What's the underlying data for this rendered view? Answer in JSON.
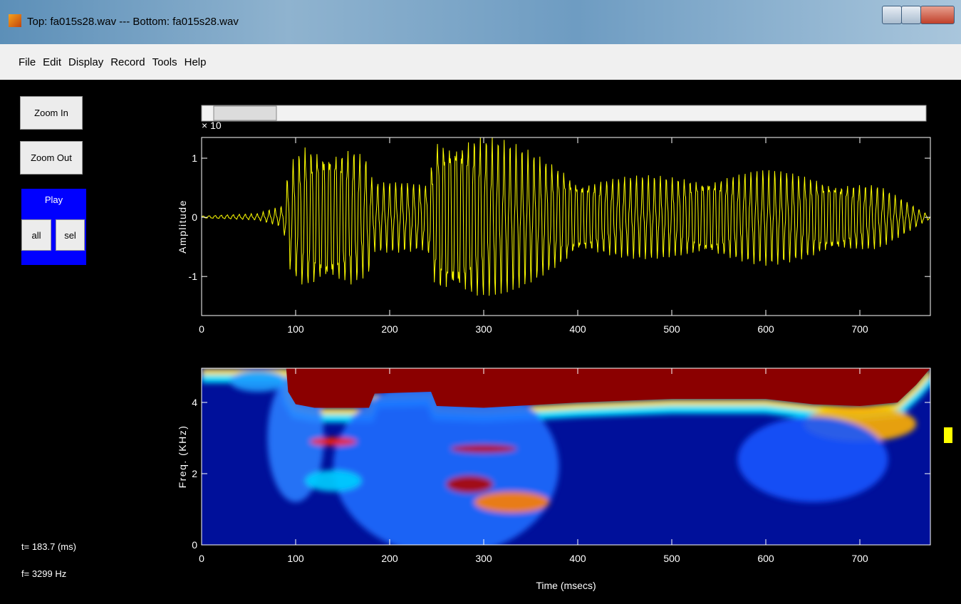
{
  "window": {
    "title": "Top: fa015s28.wav --- Bottom: fa015s28.wav"
  },
  "menu": [
    "File",
    "Edit",
    "Display",
    "Record",
    "Tools",
    "Help"
  ],
  "buttons": {
    "zoom_in": "Zoom In",
    "zoom_out": "Zoom Out",
    "play": "Play",
    "all": "all",
    "sel": "sel"
  },
  "status": {
    "time": "t= 183.7 (ms)",
    "freq": "f= 3299 Hz"
  },
  "waveform": {
    "ylabel": "Amplitude",
    "exponent": "× 10",
    "xlim": [
      0,
      775
    ],
    "ylim": [
      -1.66,
      1.35
    ],
    "xticks": [
      0,
      100,
      200,
      300,
      400,
      500,
      600,
      700
    ],
    "yticks": [
      -1,
      0,
      1
    ]
  },
  "spectrogram": {
    "ylabel": "Freq. (KHz)",
    "xlabel": "Time (msecs)",
    "xlim": [
      0,
      775
    ],
    "ylim": [
      0,
      4.96
    ],
    "xticks": [
      0,
      100,
      200,
      300,
      400,
      500,
      600,
      700
    ],
    "yticks": [
      0,
      2,
      4
    ]
  }
}
